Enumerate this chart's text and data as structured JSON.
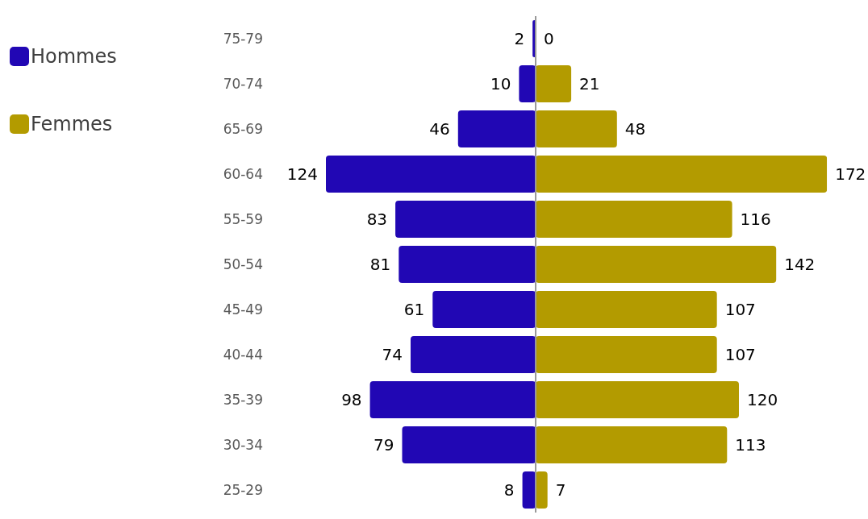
{
  "chart_data": [
    {
      "type": "bar",
      "orientation": "horizontal",
      "categories": [
        "75-79",
        "70-74",
        "65-69",
        "60-64",
        "55-59",
        "50-54",
        "45-49",
        "40-44",
        "35-39",
        "30-34",
        "25-29"
      ],
      "series": [
        {
          "name": "Hommes",
          "color": "#2107b4",
          "values": [
            2,
            10,
            46,
            124,
            83,
            81,
            61,
            74,
            98,
            79,
            8
          ]
        }
      ],
      "xlim": [
        124,
        0
      ],
      "data_labels": true,
      "tick_labels": "y",
      "legend": "top left"
    },
    {
      "type": "bar",
      "orientation": "horizontal",
      "categories": [
        null,
        null,
        null,
        null,
        null,
        null,
        null,
        null,
        null,
        null,
        null
      ],
      "series": [
        {
          "name": "Femmes",
          "color": "#b39b00",
          "values": [
            0,
            21,
            48,
            172,
            116,
            142,
            107,
            107,
            120,
            113,
            7
          ]
        }
      ],
      "xlim": [
        0,
        172
      ],
      "data_labels": true,
      "tick_labels": false,
      "legend": "top left"
    }
  ]
}
